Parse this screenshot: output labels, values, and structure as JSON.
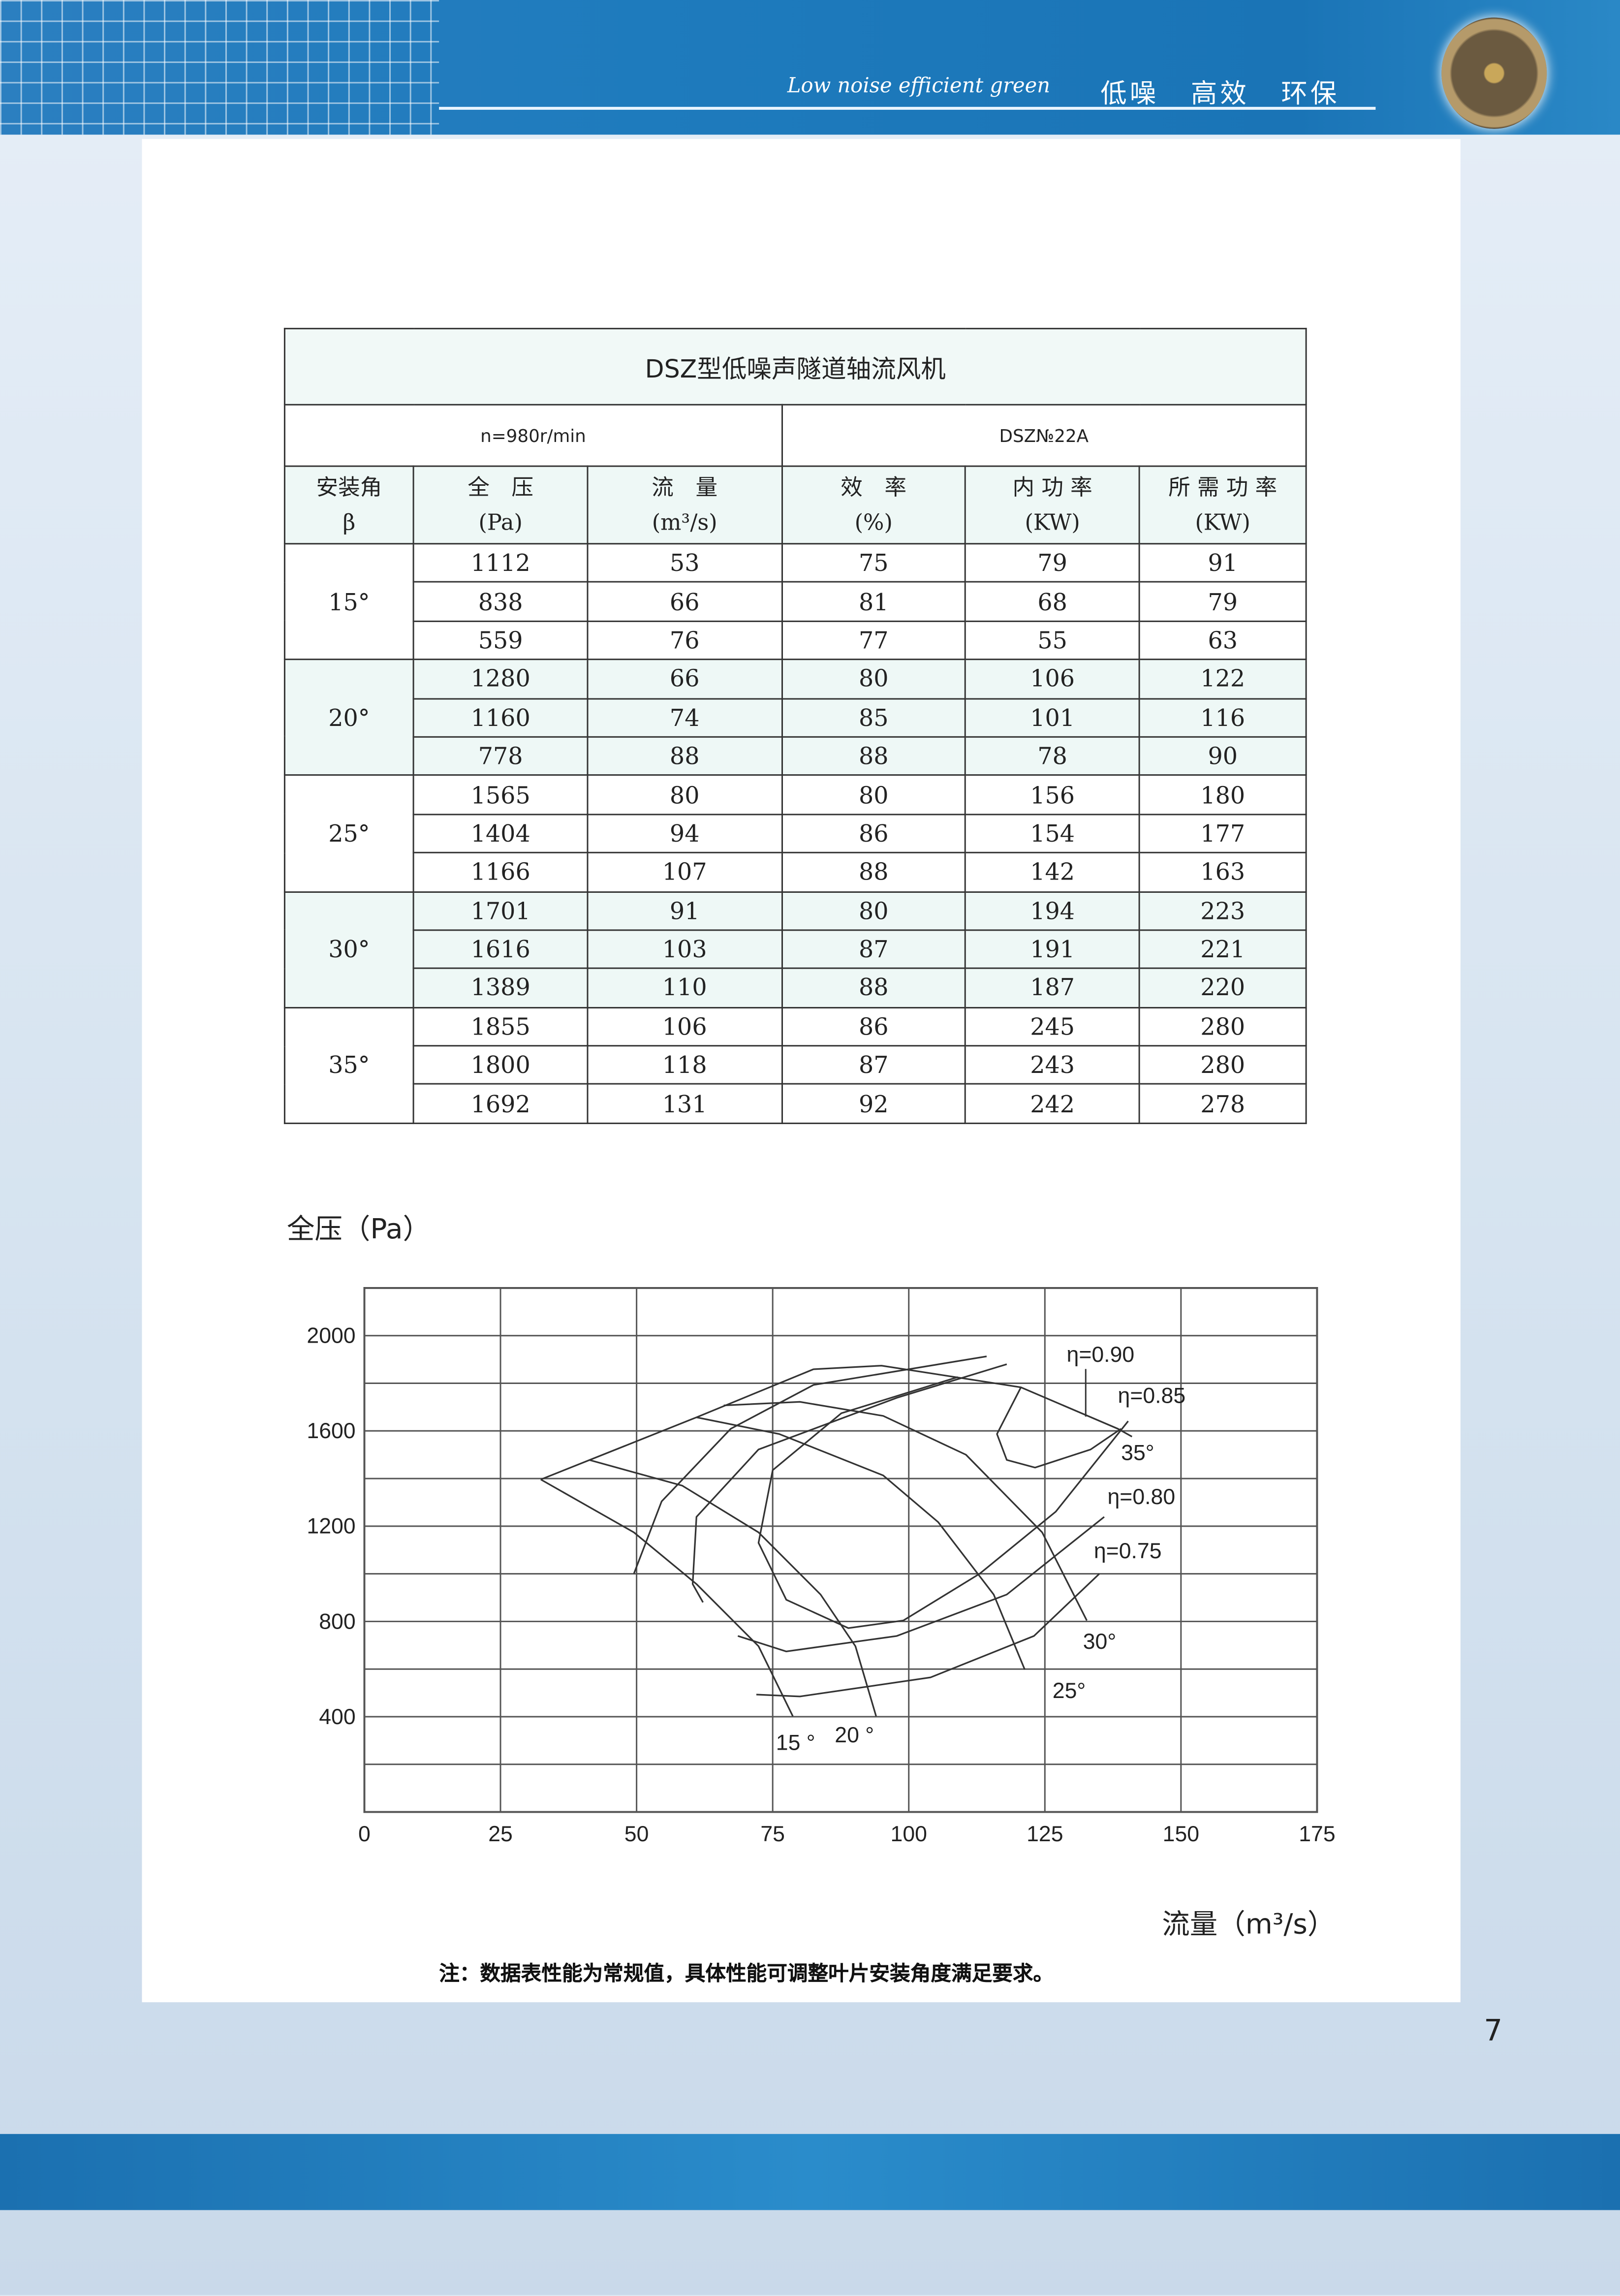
{
  "header": {
    "slogan_en": "Low noise efficient green",
    "slogan_cn": "低噪 高效 环保"
  },
  "table": {
    "title": "DSZ型低噪声隧道轴流风机",
    "speed": "n=980r/min",
    "model": "DSZ№22A",
    "columns": [
      [
        "安装角",
        "β"
      ],
      [
        "全　压",
        "(Pa)"
      ],
      [
        "流　量",
        "(m³/s)"
      ],
      [
        "效　率",
        "(%)"
      ],
      [
        "内 功 率",
        "(KW)"
      ],
      [
        "所 需 功 率",
        "(KW)"
      ]
    ],
    "groups": [
      {
        "angle": "15°",
        "rows": [
          [
            "1112",
            "53",
            "75",
            "79",
            "91"
          ],
          [
            "838",
            "66",
            "81",
            "68",
            "79"
          ],
          [
            "559",
            "76",
            "77",
            "55",
            "63"
          ]
        ]
      },
      {
        "angle": "20°",
        "rows": [
          [
            "1280",
            "66",
            "80",
            "106",
            "122"
          ],
          [
            "1160",
            "74",
            "85",
            "101",
            "116"
          ],
          [
            "778",
            "88",
            "88",
            "78",
            "90"
          ]
        ]
      },
      {
        "angle": "25°",
        "rows": [
          [
            "1565",
            "80",
            "80",
            "156",
            "180"
          ],
          [
            "1404",
            "94",
            "86",
            "154",
            "177"
          ],
          [
            "1166",
            "107",
            "88",
            "142",
            "163"
          ]
        ]
      },
      {
        "angle": "30°",
        "rows": [
          [
            "1701",
            "91",
            "80",
            "194",
            "223"
          ],
          [
            "1616",
            "103",
            "87",
            "191",
            "221"
          ],
          [
            "1389",
            "110",
            "88",
            "187",
            "220"
          ]
        ]
      },
      {
        "angle": "35°",
        "rows": [
          [
            "1855",
            "106",
            "86",
            "245",
            "280"
          ],
          [
            "1800",
            "118",
            "87",
            "243",
            "280"
          ],
          [
            "1692",
            "131",
            "92",
            "242",
            "278"
          ]
        ]
      }
    ]
  },
  "chart_data": {
    "type": "line",
    "ylabel": "全压（Pa）",
    "xlabel": "流量（m³/s）",
    "xlim": [
      0,
      175
    ],
    "ylim": [
      0,
      2200
    ],
    "xticks": [
      "0",
      "25",
      "50",
      "75",
      "100",
      "125",
      "150",
      "175"
    ],
    "yticks": [
      "400",
      "800",
      "1200",
      "1600",
      "2000"
    ],
    "grid": true,
    "series": [
      {
        "name": "15°",
        "points": [
          [
            32.4,
            1396
          ],
          [
            49.5,
            1174
          ],
          [
            61,
            957
          ],
          [
            72.4,
            696
          ],
          [
            78.7,
            402
          ]
        ]
      },
      {
        "name": "20°",
        "points": [
          [
            41.3,
            1478
          ],
          [
            58.4,
            1370
          ],
          [
            72.4,
            1174
          ],
          [
            83.8,
            913
          ],
          [
            90.2,
            696
          ],
          [
            94,
            402
          ]
        ]
      },
      {
        "name": "25°",
        "points": [
          [
            61,
            1657
          ],
          [
            76.2,
            1587
          ],
          [
            95.3,
            1413
          ],
          [
            105.4,
            1217
          ],
          [
            115.6,
            913
          ],
          [
            121.3,
            598
          ]
        ]
      },
      {
        "name": "30°",
        "points": [
          [
            66,
            1707
          ],
          [
            80,
            1722
          ],
          [
            95.3,
            1663
          ],
          [
            110.5,
            1500
          ],
          [
            124.5,
            1174
          ],
          [
            132.7,
            804
          ]
        ]
      },
      {
        "name": "35°",
        "points": [
          [
            32.4,
            1396
          ],
          [
            61,
            1657
          ],
          [
            82.5,
            1859
          ],
          [
            95,
            1874
          ],
          [
            120.6,
            1783
          ],
          [
            138.4,
            1609
          ],
          [
            141,
            1576
          ]
        ]
      },
      {
        "name": "η=0.75",
        "points": [
          [
            114.3,
            1913
          ],
          [
            82.5,
            1793
          ],
          [
            67.3,
            1609
          ],
          [
            54.6,
            1304
          ],
          [
            49.5,
            1000
          ]
        ]
      },
      {
        "name": "η=0.75",
        "points": [
          [
            72,
            493
          ],
          [
            80,
            485
          ],
          [
            104,
            565
          ],
          [
            123,
            739
          ],
          [
            135,
            1000
          ]
        ]
      },
      {
        "name": "η=0.80",
        "points": [
          [
            118,
            1880
          ],
          [
            97.8,
            1739
          ],
          [
            72.4,
            1522
          ],
          [
            61,
            1239
          ],
          [
            60.3,
            957
          ],
          [
            62.2,
            880
          ]
        ]
      },
      {
        "name": "η=0.80",
        "points": [
          [
            68.6,
            739
          ],
          [
            77.5,
            674
          ],
          [
            97.8,
            739
          ],
          [
            118,
            913
          ],
          [
            135.9,
            1239
          ]
        ]
      },
      {
        "name": "η=0.85",
        "points": [
          [
            109,
            1826
          ],
          [
            87.6,
            1674
          ],
          [
            75,
            1435
          ],
          [
            72.4,
            1130
          ],
          [
            77.5,
            891
          ],
          [
            88.9,
            772
          ],
          [
            99,
            804
          ],
          [
            113,
            1000
          ],
          [
            127,
            1261
          ],
          [
            140.3,
            1641
          ]
        ]
      },
      {
        "name": "η=0.90",
        "points": [
          [
            120.6,
            1783
          ],
          [
            116.2,
            1587
          ],
          [
            118,
            1478
          ],
          [
            123.2,
            1446
          ],
          [
            133.4,
            1522
          ],
          [
            139,
            1609
          ]
        ]
      }
    ],
    "annotations": [
      {
        "text": "η=0.90",
        "x": 129,
        "y": 1890
      },
      {
        "text": "η=0.85",
        "x": 138.4,
        "y": 1717
      },
      {
        "text": "35°",
        "x": 139,
        "y": 1478
      },
      {
        "text": "η=0.80",
        "x": 136.5,
        "y": 1293
      },
      {
        "text": "η=0.75",
        "x": 134,
        "y": 1065
      },
      {
        "text": "30°",
        "x": 132,
        "y": 685
      },
      {
        "text": "25°",
        "x": 126.4,
        "y": 478
      },
      {
        "text": "15 °",
        "x": 75.6,
        "y": 260
      },
      {
        "text": "20 °",
        "x": 86.4,
        "y": 293
      }
    ]
  },
  "note": "注：数据表性能为常规值，具体性能可调整叶片安装角度满足要求。",
  "page_number": "7"
}
